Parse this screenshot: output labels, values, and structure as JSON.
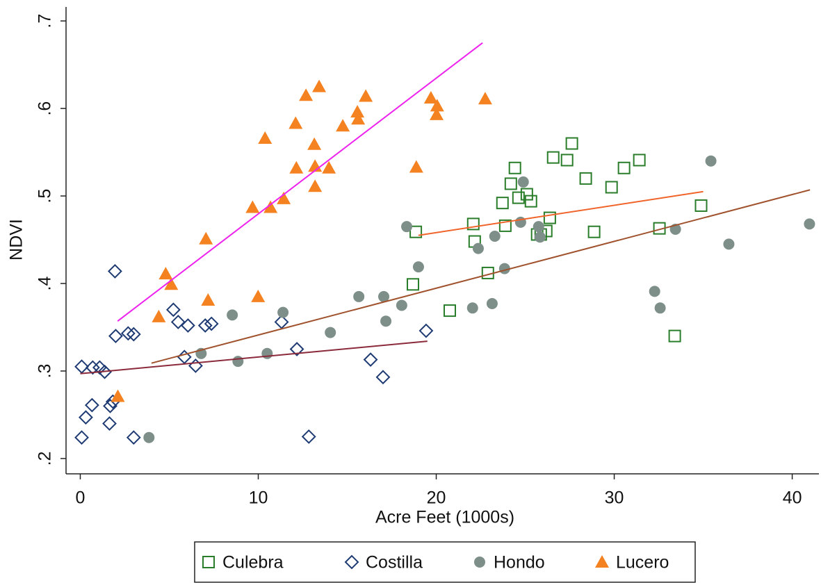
{
  "chart_data": {
    "type": "scatter",
    "xlabel": "Acre Feet (1000s)",
    "ylabel": "NDVI",
    "xlim": [
      -0.8,
      41.5
    ],
    "ylim": [
      0.1825,
      0.716
    ],
    "xticks": [
      0,
      10,
      20,
      30,
      40
    ],
    "yticks": [
      {
        "value": 0.2,
        "label": ".2"
      },
      {
        "value": 0.3,
        "label": ".3"
      },
      {
        "value": 0.4,
        "label": ".4"
      },
      {
        "value": 0.5,
        "label": ".5"
      },
      {
        "value": 0.6,
        "label": ".6"
      },
      {
        "value": 0.7,
        "label": ".7"
      }
    ],
    "grid": false,
    "legend": "bottom",
    "series": [
      {
        "name": "Culebra",
        "color": "#2a7d2a",
        "marker": "square",
        "x": [
          18.85,
          18.69,
          20.76,
          22.08,
          22.16,
          22.9,
          23.72,
          23.88,
          24.19,
          24.42,
          24.62,
          25.09,
          25.32,
          25.67,
          25.87,
          26.18,
          26.38,
          26.57,
          27.35,
          27.62,
          28.4,
          28.87,
          29.85,
          30.55,
          31.41,
          32.54,
          33.4,
          34.88
        ],
        "y": [
          0.459,
          0.399,
          0.369,
          0.468,
          0.448,
          0.412,
          0.492,
          0.466,
          0.514,
          0.532,
          0.498,
          0.502,
          0.494,
          0.456,
          0.456,
          0.46,
          0.475,
          0.544,
          0.541,
          0.56,
          0.52,
          0.459,
          0.51,
          0.532,
          0.541,
          0.463,
          0.34,
          0.489
        ],
        "fit": {
          "color": "#f0642a",
          "x": [
            19,
            35
          ],
          "y": [
            0.455,
            0.505
          ]
        }
      },
      {
        "name": "Costilla",
        "color": "#1f3b73",
        "marker": "diamond",
        "x": [
          0.08,
          0.08,
          0.31,
          0.66,
          0.7,
          1.09,
          1.37,
          1.64,
          1.68,
          1.83,
          1.95,
          1.99,
          2.69,
          3.0,
          3.0,
          5.23,
          5.5,
          5.85,
          6.05,
          6.48,
          7.02,
          7.37,
          11.31,
          12.17,
          12.84,
          16.31,
          17.01,
          19.43
        ],
        "y": [
          0.305,
          0.224,
          0.247,
          0.261,
          0.304,
          0.304,
          0.299,
          0.24,
          0.26,
          0.265,
          0.414,
          0.34,
          0.343,
          0.342,
          0.224,
          0.37,
          0.356,
          0.316,
          0.352,
          0.306,
          0.352,
          0.354,
          0.356,
          0.325,
          0.225,
          0.313,
          0.293,
          0.346
        ],
        "fit": {
          "color": "#8b2a3a",
          "x": [
            0,
            19.5
          ],
          "y": [
            0.297,
            0.334
          ]
        }
      },
      {
        "name": "Hondo",
        "color": "#7d8f88",
        "marker": "circle",
        "x": [
          3.86,
          6.79,
          8.54,
          8.86,
          10.5,
          11.39,
          14.05,
          15.65,
          17.05,
          17.17,
          18.06,
          18.34,
          19.0,
          22.04,
          22.36,
          23.14,
          23.29,
          23.84,
          24.74,
          24.89,
          25.75,
          25.83,
          32.27,
          32.58,
          33.44,
          35.43,
          36.44,
          40.97
        ],
        "y": [
          0.224,
          0.32,
          0.364,
          0.311,
          0.32,
          0.367,
          0.344,
          0.385,
          0.385,
          0.357,
          0.375,
          0.465,
          0.419,
          0.372,
          0.44,
          0.377,
          0.454,
          0.417,
          0.47,
          0.516,
          0.465,
          0.453,
          0.391,
          0.372,
          0.462,
          0.54,
          0.445,
          0.468
        ],
        "fit": {
          "color": "#a0522d",
          "x": [
            4,
            41
          ],
          "y": [
            0.309,
            0.507
          ]
        }
      },
      {
        "name": "Lucero",
        "color": "#f58220",
        "marker": "triangle",
        "x": [
          2.11,
          4.41,
          4.8,
          5.11,
          7.06,
          7.18,
          9.68,
          9.99,
          10.38,
          10.69,
          11.43,
          12.1,
          12.14,
          12.68,
          13.15,
          13.19,
          13.19,
          13.42,
          13.97,
          14.75,
          15.57,
          15.61,
          16.04,
          18.88,
          19.7,
          20.02,
          20.05,
          22.75
        ],
        "y": [
          0.271,
          0.362,
          0.411,
          0.399,
          0.451,
          0.381,
          0.487,
          0.385,
          0.566,
          0.487,
          0.497,
          0.583,
          0.532,
          0.615,
          0.559,
          0.534,
          0.511,
          0.625,
          0.532,
          0.58,
          0.596,
          0.588,
          0.614,
          0.533,
          0.612,
          0.593,
          0.603,
          0.611
        ],
        "fit": {
          "color": "#ee22ee",
          "x": [
            2.1,
            22.6
          ],
          "y": [
            0.357,
            0.675
          ]
        }
      }
    ]
  }
}
